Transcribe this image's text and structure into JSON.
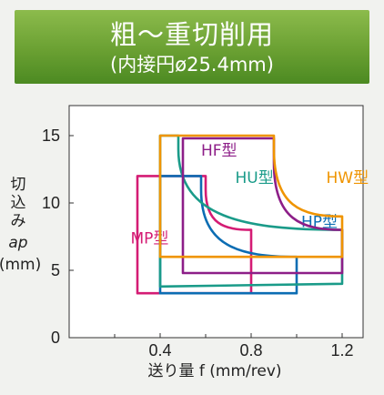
{
  "header": {
    "title": "粗～重切削用",
    "subtitle": "(内接円ø25.4mm)"
  },
  "chart_data": {
    "type": "area",
    "title": "粗～重切削用",
    "subtitle": "(内接円ø25.4mm)",
    "xlabel": "送り量 f (mm/rev)",
    "ylabel_lines": [
      "切",
      "込",
      "み",
      "ap",
      "(mm)"
    ],
    "xlim": [
      0,
      1.25
    ],
    "ylim": [
      0,
      17
    ],
    "xticks": [
      "0.4",
      "0.8",
      "1.2"
    ],
    "yticks": [
      "0",
      "5",
      "10",
      "15"
    ],
    "grid": false,
    "series": [
      {
        "name": "MP型",
        "color": "#d41c74",
        "outline": [
          [
            0.3,
            3.3
          ],
          [
            0.3,
            12.0
          ],
          [
            0.6,
            12.0
          ],
          [
            0.6,
            11.0
          ],
          [
            0.8,
            8.0
          ],
          [
            0.8,
            3.3
          ]
        ],
        "label_at": [
          0.27,
          7.0
        ]
      },
      {
        "name": "HP型",
        "color": "#0c6db3",
        "outline": [
          [
            0.4,
            3.3
          ],
          [
            0.4,
            12.0
          ],
          [
            0.58,
            12.0
          ],
          [
            0.58,
            11.0
          ],
          [
            1.0,
            6.0
          ],
          [
            1.0,
            3.3
          ]
        ],
        "label_at": [
          1.02,
          8.2
        ]
      },
      {
        "name": "HU型",
        "color": "#1a9b89",
        "outline": [
          [
            0.4,
            3.8
          ],
          [
            0.4,
            15.0
          ],
          [
            0.48,
            15.0
          ],
          [
            0.48,
            14.0
          ],
          [
            1.2,
            8.0
          ],
          [
            1.2,
            4.0
          ]
        ],
        "label_at": [
          0.73,
          11.5
        ]
      },
      {
        "name": "HF型",
        "color": "#8d1e88",
        "outline": [
          [
            0.5,
            4.8
          ],
          [
            0.5,
            14.8
          ],
          [
            0.9,
            14.8
          ],
          [
            0.9,
            13.0
          ],
          [
            1.2,
            8.0
          ],
          [
            1.2,
            4.8
          ]
        ],
        "label_at": [
          0.58,
          13.5
        ]
      },
      {
        "name": "HW型",
        "color": "#ef9400",
        "outline": [
          [
            0.4,
            6.0
          ],
          [
            0.4,
            15.0
          ],
          [
            0.9,
            15.0
          ],
          [
            0.9,
            14.0
          ],
          [
            1.2,
            9.0
          ],
          [
            1.2,
            6.0
          ]
        ],
        "label_at": [
          1.13,
          11.5
        ]
      }
    ]
  }
}
